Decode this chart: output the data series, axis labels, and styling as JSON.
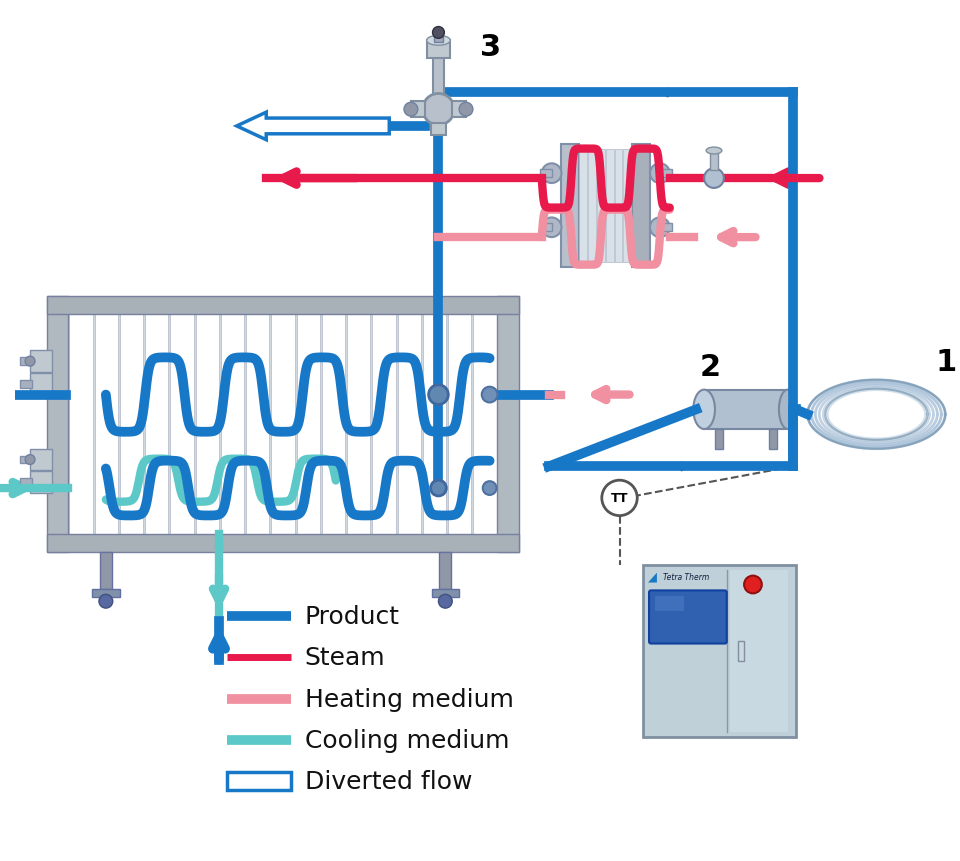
{
  "product_color": "#1878c8",
  "steam_color": "#e8194b",
  "heating_color": "#f090a0",
  "cooling_color": "#5cc8c8",
  "diverted_color": "#1878c8",
  "frame_color": "#9098a8",
  "label_color": "#222222",
  "bg_color": "#f5f5f5",
  "legend": [
    {
      "label": "Product",
      "color": "#1878c8",
      "hollow": false,
      "lw": 7
    },
    {
      "label": "Steam",
      "color": "#e8194b",
      "hollow": false,
      "lw": 5
    },
    {
      "label": "Heating medium",
      "color": "#f090a0",
      "hollow": false,
      "lw": 7
    },
    {
      "label": "Cooling medium",
      "color": "#5cc8c8",
      "hollow": false,
      "lw": 7
    },
    {
      "label": "Diverted flow",
      "color": "#1878c8",
      "hollow": true,
      "lw": 2
    }
  ]
}
